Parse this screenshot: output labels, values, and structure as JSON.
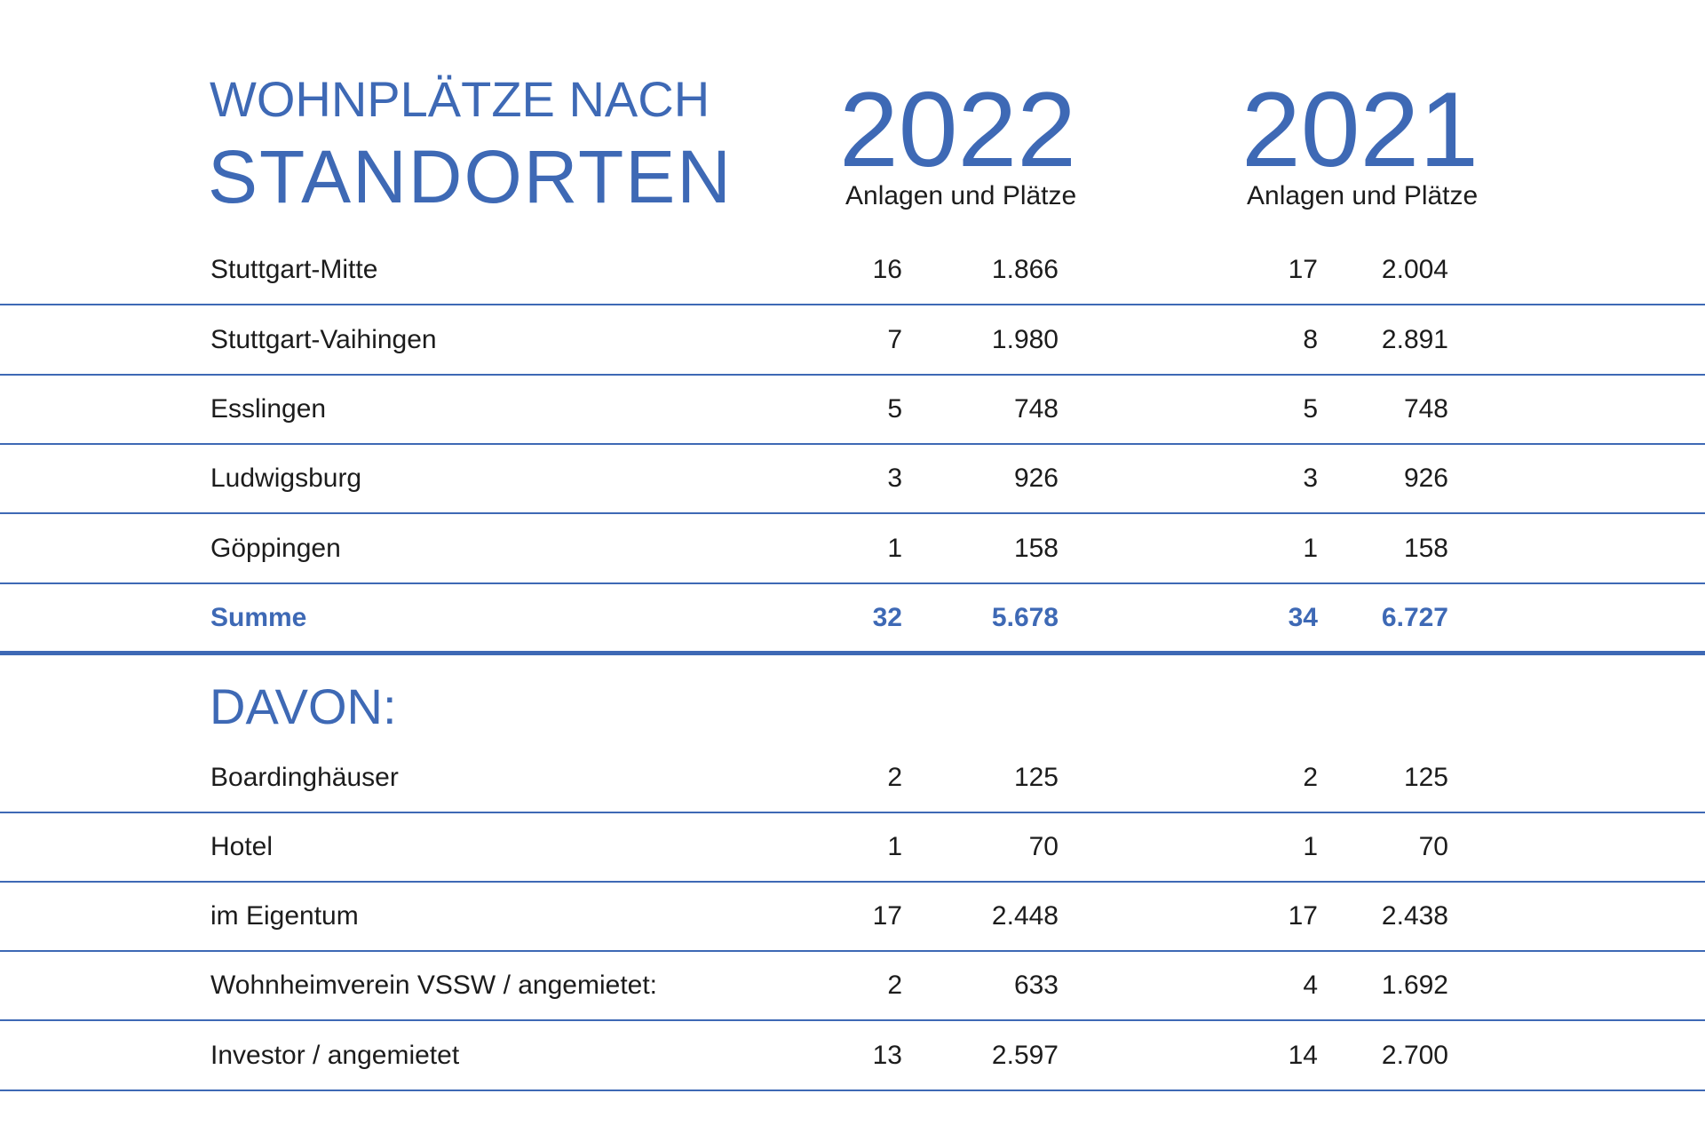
{
  "title": {
    "line1": "WOHNPLÄTZE NACH",
    "line2": "STANDORTEN"
  },
  "years": [
    {
      "year": "2022",
      "subtitle": "Anlagen und Plätze"
    },
    {
      "year": "2021",
      "subtitle": "Anlagen und Plätze"
    }
  ],
  "standorte": [
    {
      "name": "Stuttgart-Mitte",
      "anlagen_2022": "16",
      "plaetze_2022": "1.866",
      "anlagen_2021": "17",
      "plaetze_2021": "2.004"
    },
    {
      "name": "Stuttgart-Vaihingen",
      "anlagen_2022": "7",
      "plaetze_2022": "1.980",
      "anlagen_2021": "8",
      "plaetze_2021": "2.891"
    },
    {
      "name": "Esslingen",
      "anlagen_2022": "5",
      "plaetze_2022": "748",
      "anlagen_2021": "5",
      "plaetze_2021": "748"
    },
    {
      "name": "Ludwigsburg",
      "anlagen_2022": "3",
      "plaetze_2022": "926",
      "anlagen_2021": "3",
      "plaetze_2021": "926"
    },
    {
      "name": "Göppingen",
      "anlagen_2022": "1",
      "plaetze_2022": "158",
      "anlagen_2021": "1",
      "plaetze_2021": "158"
    }
  ],
  "summe": {
    "name": "Summe",
    "anlagen_2022": "32",
    "plaetze_2022": "5.678",
    "anlagen_2021": "34",
    "plaetze_2021": "6.727"
  },
  "davon": {
    "title": "DAVON:",
    "rows": [
      {
        "name": "Boardinghäuser",
        "anlagen_2022": "2",
        "plaetze_2022": "125",
        "anlagen_2021": "2",
        "plaetze_2021": "125"
      },
      {
        "name": "Hotel",
        "anlagen_2022": "1",
        "plaetze_2022": "70",
        "anlagen_2021": "1",
        "plaetze_2021": "70"
      },
      {
        "name": "im Eigentum",
        "anlagen_2022": "17",
        "plaetze_2022": "2.448",
        "anlagen_2021": "17",
        "plaetze_2021": "2.438"
      },
      {
        "name": "Wohnheimverein VSSW / angemietet:",
        "anlagen_2022": "2",
        "plaetze_2022": "633",
        "anlagen_2021": "4",
        "plaetze_2021": "1.692"
      },
      {
        "name": "Investor / angemietet",
        "anlagen_2022": "13",
        "plaetze_2022": "2.597",
        "anlagen_2021": "14",
        "plaetze_2021": "2.700"
      }
    ]
  },
  "colors": {
    "accent": "#3e69b5",
    "text": "#1c1c1c"
  }
}
